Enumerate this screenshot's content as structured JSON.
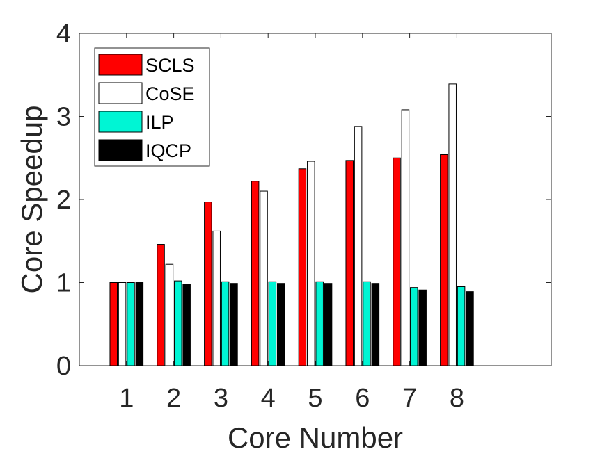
{
  "chart_data": {
    "type": "bar",
    "title": "",
    "xlabel": "Core Number",
    "ylabel": "Core Speedup",
    "categories": [
      "1",
      "2",
      "3",
      "4",
      "5",
      "6",
      "7",
      "8"
    ],
    "xlim": [
      0,
      10
    ],
    "ylim": [
      0,
      4
    ],
    "yticks": [
      "0",
      "1",
      "2",
      "3",
      "4"
    ],
    "grid": false,
    "legend_position": "top-left",
    "series": [
      {
        "name": "SCLS",
        "color": "#ff0000",
        "values": [
          1.0,
          1.46,
          1.97,
          2.22,
          2.37,
          2.47,
          2.5,
          2.54
        ]
      },
      {
        "name": "CoSE",
        "color": "#ffffff",
        "values": [
          1.0,
          1.22,
          1.62,
          2.1,
          2.46,
          2.88,
          3.08,
          3.39
        ]
      },
      {
        "name": "ILP",
        "color": "#00f5d4",
        "values": [
          1.0,
          1.02,
          1.01,
          1.01,
          1.01,
          1.01,
          0.94,
          0.95
        ]
      },
      {
        "name": "IQCP",
        "color": "#000000",
        "values": [
          1.0,
          0.98,
          0.99,
          0.99,
          0.99,
          0.99,
          0.91,
          0.89
        ]
      }
    ]
  }
}
